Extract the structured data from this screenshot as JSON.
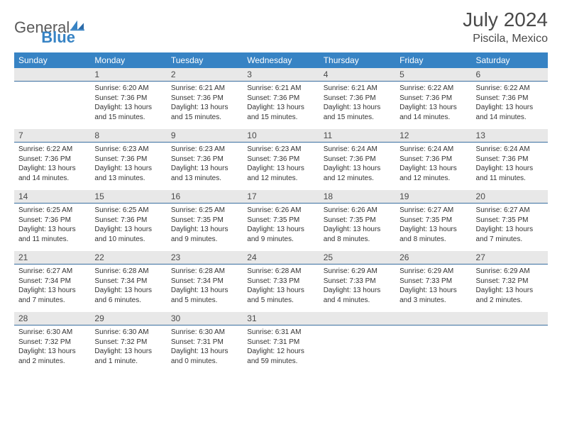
{
  "brand": {
    "part1": "General",
    "part2": "Blue"
  },
  "title": "July 2024",
  "location": "Piscila, Mexico",
  "colors": {
    "header_bg": "#3783c4",
    "header_fg": "#ffffff",
    "numrow_bg": "#e8e8e8",
    "numrow_border": "#3a6fa0",
    "text": "#333333",
    "title_color": "#4a4a4a",
    "brand_gray": "#5a5a5a",
    "brand_blue": "#3783c4",
    "page_bg": "#ffffff"
  },
  "typography": {
    "title_fontsize": 28,
    "location_fontsize": 16,
    "dayhead_fontsize": 12,
    "daynum_fontsize": 12,
    "cell_fontsize": 10
  },
  "day_headers": [
    "Sunday",
    "Monday",
    "Tuesday",
    "Wednesday",
    "Thursday",
    "Friday",
    "Saturday"
  ],
  "weeks": [
    {
      "nums": [
        "",
        "1",
        "2",
        "3",
        "4",
        "5",
        "6"
      ],
      "cells": [
        null,
        {
          "sunrise": "Sunrise: 6:20 AM",
          "sunset": "Sunset: 7:36 PM",
          "day1": "Daylight: 13 hours",
          "day2": "and 15 minutes."
        },
        {
          "sunrise": "Sunrise: 6:21 AM",
          "sunset": "Sunset: 7:36 PM",
          "day1": "Daylight: 13 hours",
          "day2": "and 15 minutes."
        },
        {
          "sunrise": "Sunrise: 6:21 AM",
          "sunset": "Sunset: 7:36 PM",
          "day1": "Daylight: 13 hours",
          "day2": "and 15 minutes."
        },
        {
          "sunrise": "Sunrise: 6:21 AM",
          "sunset": "Sunset: 7:36 PM",
          "day1": "Daylight: 13 hours",
          "day2": "and 15 minutes."
        },
        {
          "sunrise": "Sunrise: 6:22 AM",
          "sunset": "Sunset: 7:36 PM",
          "day1": "Daylight: 13 hours",
          "day2": "and 14 minutes."
        },
        {
          "sunrise": "Sunrise: 6:22 AM",
          "sunset": "Sunset: 7:36 PM",
          "day1": "Daylight: 13 hours",
          "day2": "and 14 minutes."
        }
      ]
    },
    {
      "nums": [
        "7",
        "8",
        "9",
        "10",
        "11",
        "12",
        "13"
      ],
      "cells": [
        {
          "sunrise": "Sunrise: 6:22 AM",
          "sunset": "Sunset: 7:36 PM",
          "day1": "Daylight: 13 hours",
          "day2": "and 14 minutes."
        },
        {
          "sunrise": "Sunrise: 6:23 AM",
          "sunset": "Sunset: 7:36 PM",
          "day1": "Daylight: 13 hours",
          "day2": "and 13 minutes."
        },
        {
          "sunrise": "Sunrise: 6:23 AM",
          "sunset": "Sunset: 7:36 PM",
          "day1": "Daylight: 13 hours",
          "day2": "and 13 minutes."
        },
        {
          "sunrise": "Sunrise: 6:23 AM",
          "sunset": "Sunset: 7:36 PM",
          "day1": "Daylight: 13 hours",
          "day2": "and 12 minutes."
        },
        {
          "sunrise": "Sunrise: 6:24 AM",
          "sunset": "Sunset: 7:36 PM",
          "day1": "Daylight: 13 hours",
          "day2": "and 12 minutes."
        },
        {
          "sunrise": "Sunrise: 6:24 AM",
          "sunset": "Sunset: 7:36 PM",
          "day1": "Daylight: 13 hours",
          "day2": "and 12 minutes."
        },
        {
          "sunrise": "Sunrise: 6:24 AM",
          "sunset": "Sunset: 7:36 PM",
          "day1": "Daylight: 13 hours",
          "day2": "and 11 minutes."
        }
      ]
    },
    {
      "nums": [
        "14",
        "15",
        "16",
        "17",
        "18",
        "19",
        "20"
      ],
      "cells": [
        {
          "sunrise": "Sunrise: 6:25 AM",
          "sunset": "Sunset: 7:36 PM",
          "day1": "Daylight: 13 hours",
          "day2": "and 11 minutes."
        },
        {
          "sunrise": "Sunrise: 6:25 AM",
          "sunset": "Sunset: 7:36 PM",
          "day1": "Daylight: 13 hours",
          "day2": "and 10 minutes."
        },
        {
          "sunrise": "Sunrise: 6:25 AM",
          "sunset": "Sunset: 7:35 PM",
          "day1": "Daylight: 13 hours",
          "day2": "and 9 minutes."
        },
        {
          "sunrise": "Sunrise: 6:26 AM",
          "sunset": "Sunset: 7:35 PM",
          "day1": "Daylight: 13 hours",
          "day2": "and 9 minutes."
        },
        {
          "sunrise": "Sunrise: 6:26 AM",
          "sunset": "Sunset: 7:35 PM",
          "day1": "Daylight: 13 hours",
          "day2": "and 8 minutes."
        },
        {
          "sunrise": "Sunrise: 6:27 AM",
          "sunset": "Sunset: 7:35 PM",
          "day1": "Daylight: 13 hours",
          "day2": "and 8 minutes."
        },
        {
          "sunrise": "Sunrise: 6:27 AM",
          "sunset": "Sunset: 7:35 PM",
          "day1": "Daylight: 13 hours",
          "day2": "and 7 minutes."
        }
      ]
    },
    {
      "nums": [
        "21",
        "22",
        "23",
        "24",
        "25",
        "26",
        "27"
      ],
      "cells": [
        {
          "sunrise": "Sunrise: 6:27 AM",
          "sunset": "Sunset: 7:34 PM",
          "day1": "Daylight: 13 hours",
          "day2": "and 7 minutes."
        },
        {
          "sunrise": "Sunrise: 6:28 AM",
          "sunset": "Sunset: 7:34 PM",
          "day1": "Daylight: 13 hours",
          "day2": "and 6 minutes."
        },
        {
          "sunrise": "Sunrise: 6:28 AM",
          "sunset": "Sunset: 7:34 PM",
          "day1": "Daylight: 13 hours",
          "day2": "and 5 minutes."
        },
        {
          "sunrise": "Sunrise: 6:28 AM",
          "sunset": "Sunset: 7:33 PM",
          "day1": "Daylight: 13 hours",
          "day2": "and 5 minutes."
        },
        {
          "sunrise": "Sunrise: 6:29 AM",
          "sunset": "Sunset: 7:33 PM",
          "day1": "Daylight: 13 hours",
          "day2": "and 4 minutes."
        },
        {
          "sunrise": "Sunrise: 6:29 AM",
          "sunset": "Sunset: 7:33 PM",
          "day1": "Daylight: 13 hours",
          "day2": "and 3 minutes."
        },
        {
          "sunrise": "Sunrise: 6:29 AM",
          "sunset": "Sunset: 7:32 PM",
          "day1": "Daylight: 13 hours",
          "day2": "and 2 minutes."
        }
      ]
    },
    {
      "nums": [
        "28",
        "29",
        "30",
        "31",
        "",
        "",
        ""
      ],
      "cells": [
        {
          "sunrise": "Sunrise: 6:30 AM",
          "sunset": "Sunset: 7:32 PM",
          "day1": "Daylight: 13 hours",
          "day2": "and 2 minutes."
        },
        {
          "sunrise": "Sunrise: 6:30 AM",
          "sunset": "Sunset: 7:32 PM",
          "day1": "Daylight: 13 hours",
          "day2": "and 1 minute."
        },
        {
          "sunrise": "Sunrise: 6:30 AM",
          "sunset": "Sunset: 7:31 PM",
          "day1": "Daylight: 13 hours",
          "day2": "and 0 minutes."
        },
        {
          "sunrise": "Sunrise: 6:31 AM",
          "sunset": "Sunset: 7:31 PM",
          "day1": "Daylight: 12 hours",
          "day2": "and 59 minutes."
        },
        null,
        null,
        null
      ]
    }
  ]
}
